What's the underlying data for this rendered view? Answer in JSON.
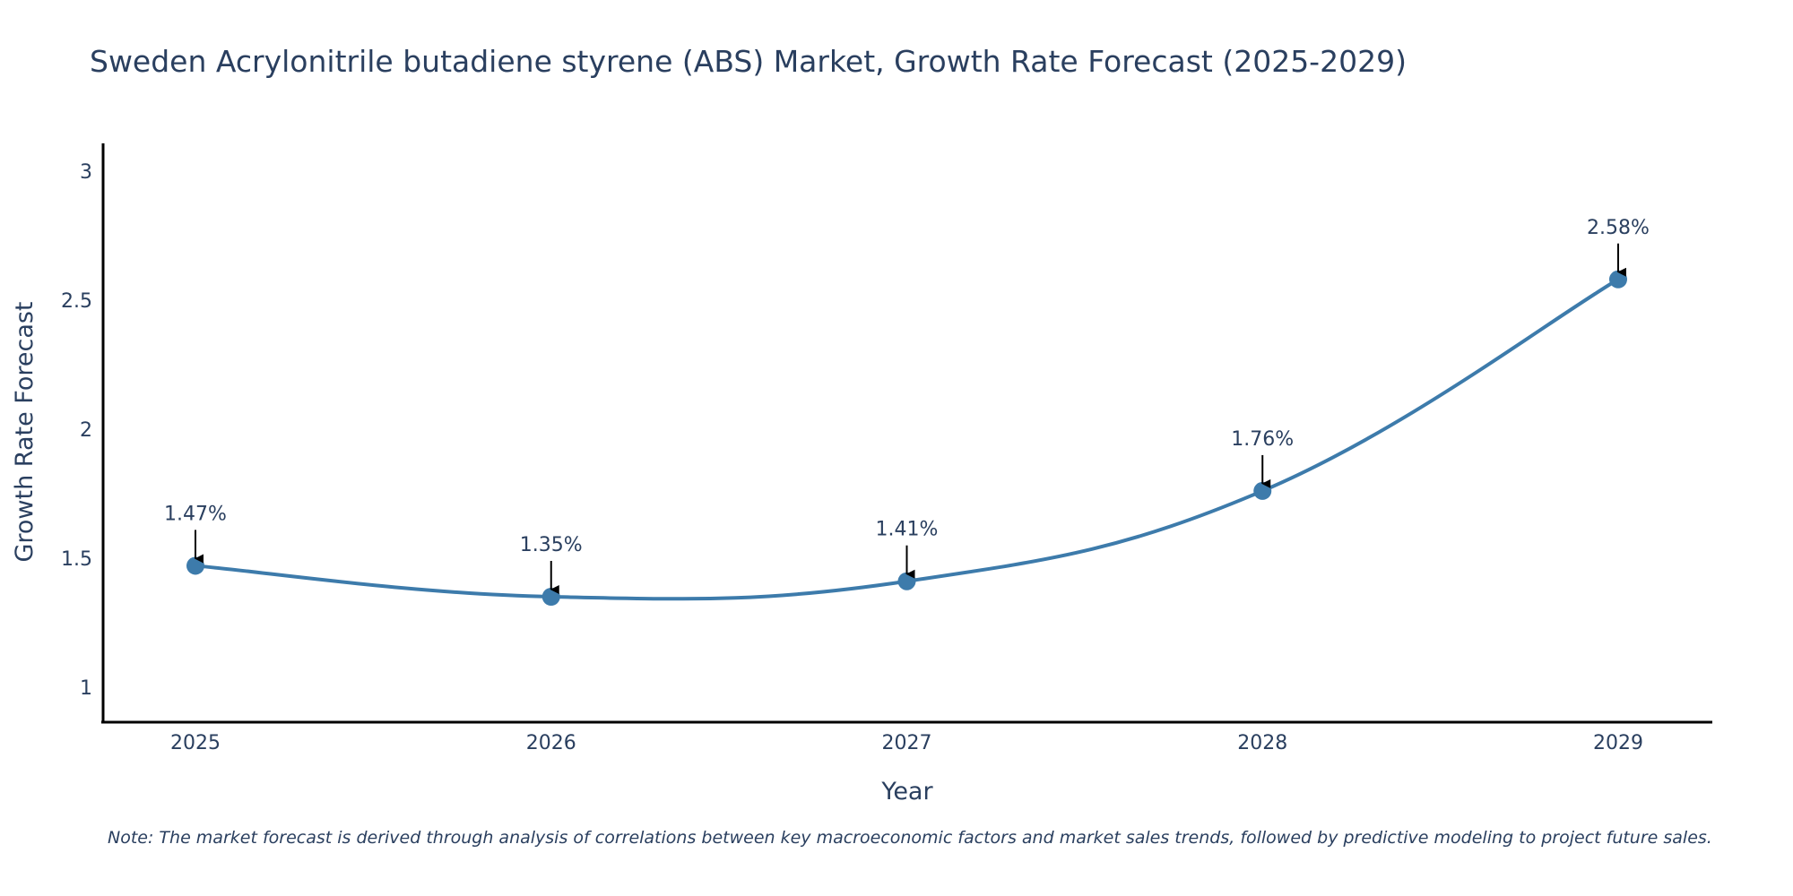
{
  "chart_data": {
    "type": "line",
    "title": "Sweden Acrylonitrile butadiene styrene (ABS) Market, Growth Rate Forecast (2025-2029)",
    "xlabel": "Year",
    "ylabel": "Growth Rate Forecast",
    "categories": [
      "2025",
      "2026",
      "2027",
      "2028",
      "2029"
    ],
    "series": [
      {
        "name": "Growth Rate Forecast",
        "values": [
          1.47,
          1.35,
          1.41,
          1.76,
          2.58
        ],
        "labels": [
          "1.47%",
          "1.35%",
          "1.41%",
          "1.76%",
          "2.58%"
        ],
        "color": "#3d7bab"
      }
    ],
    "yticks": [
      "1",
      "1.5",
      "2",
      "2.5",
      "3"
    ],
    "ytick_values": [
      1,
      1.5,
      2,
      2.5,
      3
    ],
    "ylim": [
      0.85,
      3.08
    ],
    "grid": false,
    "note": "Note: The market forecast is derived through analysis of correlations between key macroeconomic factors and market sales trends, followed by predictive modeling to project future sales."
  },
  "colors": {
    "text": "#2a3f5f",
    "line": "#3d7bab",
    "marker": "#3d7bab",
    "axis": "#000000",
    "arrow": "#000000"
  }
}
